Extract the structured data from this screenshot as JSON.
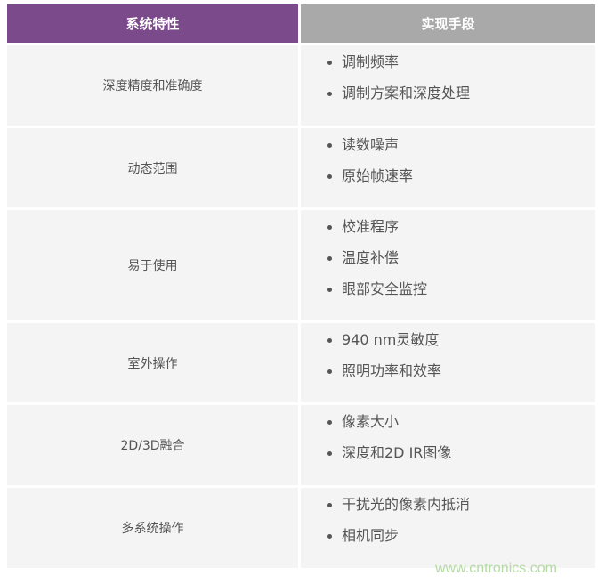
{
  "header": {
    "col1": "系统特性",
    "col2": "实现手段"
  },
  "rows": [
    {
      "feature": "深度精度和准确度",
      "means": [
        "调制频率",
        "调制方案和深度处理"
      ]
    },
    {
      "feature": "动态范围",
      "means": [
        "读数噪声",
        "原始帧速率"
      ]
    },
    {
      "feature": "易于使用",
      "means": [
        "校准程序",
        "温度补偿",
        "眼部安全监控"
      ]
    },
    {
      "feature": "室外操作",
      "means": [
        "940 nm灵敏度",
        "照明功率和效率"
      ]
    },
    {
      "feature": "2D/3D融合",
      "means": [
        "像素大小",
        "深度和2D IR图像"
      ]
    },
    {
      "feature": "多系统操作",
      "means": [
        "干扰光的像素内抵消",
        "相机同步"
      ]
    }
  ],
  "watermark": "www.cntronics.com",
  "colors": {
    "header_left": "#7b4a8a",
    "header_right": "#a9a9a9",
    "cell_bg": "#f4f4f4"
  }
}
